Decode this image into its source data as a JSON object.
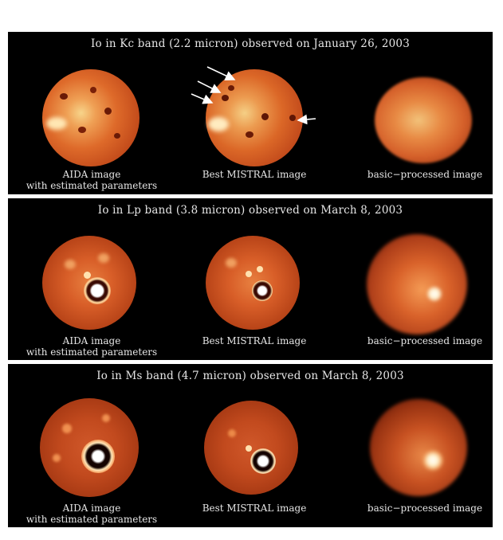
{
  "panels": [
    {
      "title": "Io in Kc band (2.2 micron) observed on January 26, 2003",
      "captions": {
        "left_line1": "AIDA image",
        "left_line2": "with estimated parameters",
        "middle": "Best MISTRAL image",
        "right": "basic−processed image"
      }
    },
    {
      "title": "Io in Lp band (3.8 micron) observed on March 8, 2003",
      "captions": {
        "left_line1": "AIDA image",
        "left_line2": "with estimated parameters",
        "middle": "Best MISTRAL image",
        "right": "basic−processed image"
      }
    },
    {
      "title": "Io in Ms band (4.7 micron) observed on March 8, 2003",
      "captions": {
        "left_line1": "AIDA image",
        "left_line2": "with estimated parameters",
        "middle": "Best MISTRAL image",
        "right": "basic−processed image"
      }
    }
  ],
  "colors": {
    "background": "#000000",
    "kc_disk": "#d9541f",
    "hot_spot": "#ffffff",
    "text": "#e6e6e6"
  }
}
